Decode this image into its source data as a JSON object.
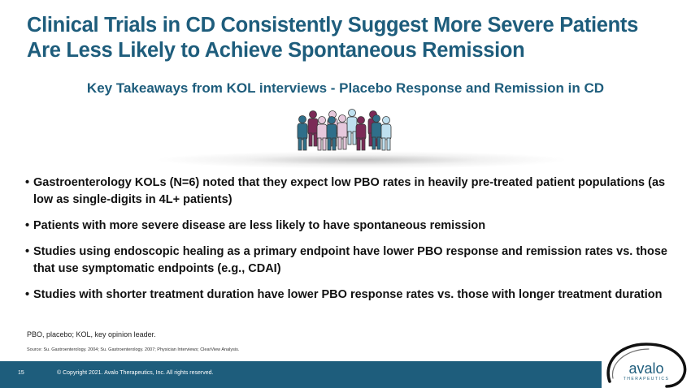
{
  "slide": {
    "title": "Clinical Trials in CD Consistently Suggest More Severe Patients Are Less Likely to Achieve Spontaneous Remission",
    "subtitle": "Key Takeaways from KOL interviews - Placebo Response and Remission in CD",
    "bullet_marker": "•",
    "bullets": [
      "Gastroenterology KOLs (N=6) noted that they expect low PBO rates in heavily pre-treated patient populations (as low as single-digits in 4L+ patients)",
      "Patients with more severe disease are less likely to have spontaneous remission",
      "Studies using endoscopic healing as a primary endpoint have lower PBO response and remission rates vs. those that use symptomatic endpoints (e.g., CDAI)",
      "Studies with shorter treatment duration have lower PBO response rates vs. those with longer treatment duration"
    ],
    "footnote": "PBO, placebo; KOL, key opinion leader.",
    "source": "Source: Su. Gastroenterology. 2004; Su. Gastroenterology. 2007; Physician Interviews; ClearView Analysis."
  },
  "footer": {
    "page_number": "15",
    "copyright": "© Copyright 2021. Avalo Therapeutics, Inc. All rights reserved."
  },
  "logo": {
    "name": "avalo",
    "tagline": "THERAPEUTICS"
  },
  "icons": {
    "people_group": "people-group-icon"
  },
  "colors": {
    "title_blue": "#1e5d7c",
    "teal": "#2f6f8a",
    "maroon": "#7b2a57",
    "light_pink": "#e6c8dc",
    "light_blue": "#bfe0ef"
  }
}
